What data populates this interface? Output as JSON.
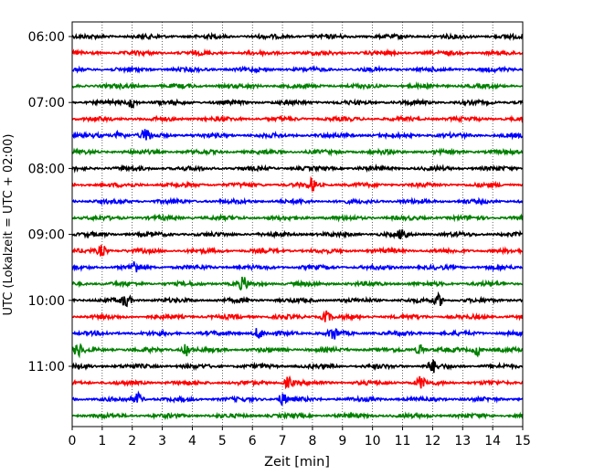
{
  "chart_data": {
    "type": "line",
    "title": "",
    "xlabel": "Zeit  [min]",
    "ylabel": "UTC (Lokalzeit = UTC + 02:00)",
    "xlim": [
      0,
      15
    ],
    "x_ticks": [
      0,
      1,
      2,
      3,
      4,
      5,
      6,
      7,
      8,
      9,
      10,
      11,
      12,
      13,
      14,
      15
    ],
    "y_ticks": [
      "06:00",
      "07:00",
      "08:00",
      "09:00",
      "10:00",
      "11:00"
    ],
    "grid": "vertical dotted at each minute",
    "trace_interval_min": 15,
    "trace_colors": [
      "#000000",
      "#ff0000",
      "#0000ff",
      "#008000"
    ],
    "series": [
      {
        "start": "06:00",
        "color": "#000000"
      },
      {
        "start": "06:15",
        "color": "#ff0000"
      },
      {
        "start": "06:30",
        "color": "#0000ff"
      },
      {
        "start": "06:45",
        "color": "#008000"
      },
      {
        "start": "07:00",
        "color": "#000000",
        "events": [
          2.0
        ]
      },
      {
        "start": "07:15",
        "color": "#ff0000"
      },
      {
        "start": "07:30",
        "color": "#0000ff",
        "events": [
          1.6,
          2.45
        ]
      },
      {
        "start": "07:45",
        "color": "#008000"
      },
      {
        "start": "08:00",
        "color": "#000000"
      },
      {
        "start": "08:15",
        "color": "#ff0000",
        "events": [
          8.0
        ]
      },
      {
        "start": "08:30",
        "color": "#0000ff"
      },
      {
        "start": "08:45",
        "color": "#008000"
      },
      {
        "start": "09:00",
        "color": "#000000",
        "events": [
          11.0
        ]
      },
      {
        "start": "09:15",
        "color": "#ff0000",
        "events": [
          1.0
        ]
      },
      {
        "start": "09:30",
        "color": "#0000ff",
        "events": [
          2.1
        ]
      },
      {
        "start": "09:45",
        "color": "#008000",
        "events": [
          5.7
        ]
      },
      {
        "start": "10:00",
        "color": "#000000",
        "events": [
          1.8,
          12.2
        ]
      },
      {
        "start": "10:15",
        "color": "#ff0000",
        "events": [
          8.45
        ]
      },
      {
        "start": "10:30",
        "color": "#0000ff",
        "events": [
          6.2,
          8.7
        ]
      },
      {
        "start": "10:45",
        "color": "#008000",
        "events": [
          0.2,
          3.8,
          11.6,
          13.5
        ]
      },
      {
        "start": "11:00",
        "color": "#000000",
        "events": [
          12.0
        ]
      },
      {
        "start": "11:15",
        "color": "#ff0000",
        "events": [
          7.2,
          11.6
        ]
      },
      {
        "start": "11:30",
        "color": "#0000ff",
        "events": [
          2.2,
          7.0
        ]
      },
      {
        "start": "11:45",
        "color": "#008000"
      }
    ]
  }
}
